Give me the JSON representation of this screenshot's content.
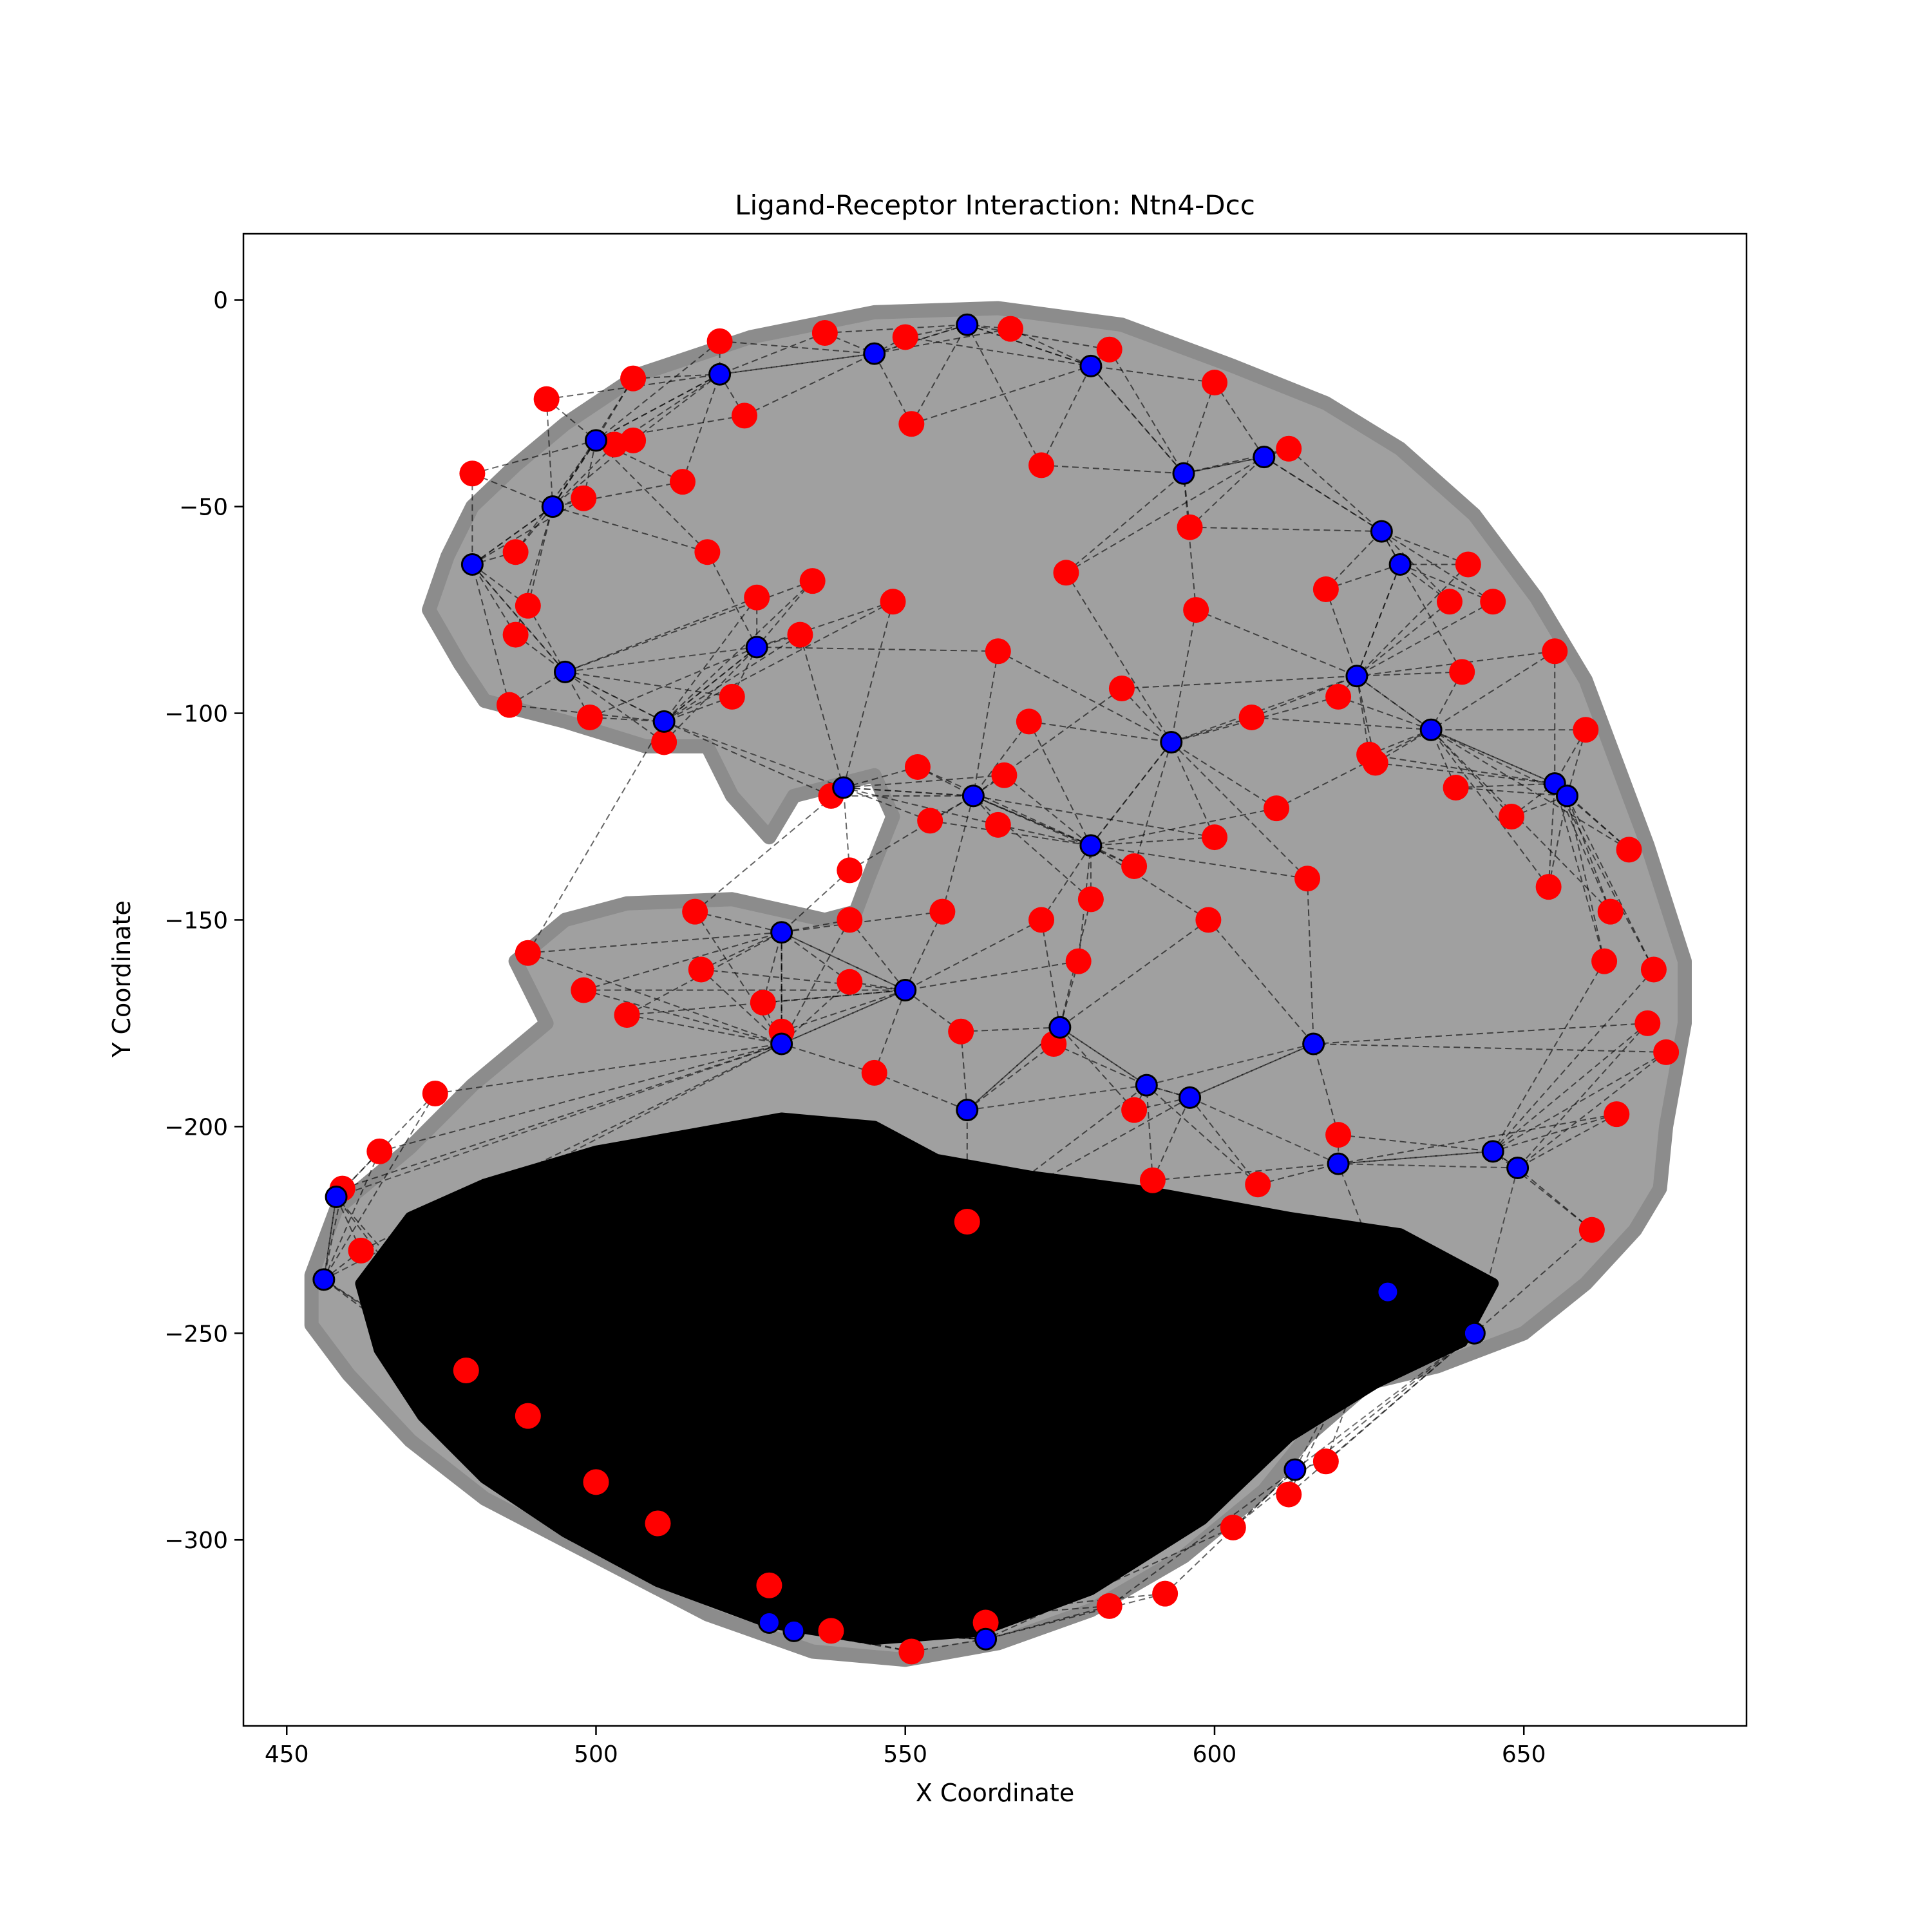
{
  "chart_data": {
    "type": "scatter",
    "title": "Ligand-Receptor Interaction: Ntn4-Dcc",
    "xlabel": "X Coordinate",
    "ylabel": "Y Coordinate",
    "xlim": [
      443,
      686
    ],
    "ylim": [
      -345,
      16
    ],
    "xticks": [
      450,
      500,
      550,
      600,
      650
    ],
    "yticks": [
      0,
      -50,
      -100,
      -150,
      -200,
      -250,
      -300
    ],
    "xtick_labels": [
      "450",
      "500",
      "550",
      "600",
      "650"
    ],
    "ytick_labels": [
      "0",
      "−50",
      "−100",
      "−150",
      "−200",
      "−250",
      "−300"
    ],
    "grid": false,
    "legend": "none",
    "colors": {
      "background_cells": "#a0a0a0",
      "ligand_cells": "#ff0000",
      "receptor_cells": "#0000ff",
      "interaction_edges": "#000000"
    },
    "series": [
      {
        "role": "receptor-expressing cells",
        "color": "#0000ff",
        "x": [
          480,
          500,
          520,
          545,
          560,
          580,
          595,
          608,
          627,
          630,
          495,
          493,
          511,
          526,
          540,
          561,
          580,
          593,
          623,
          635,
          655,
          657,
          530,
          575,
          589,
          596,
          620,
          645,
          649,
          628,
          560,
          550,
          530,
          616,
          613,
          528,
          456,
          458,
          563,
          532,
          642
        ],
        "y": [
          -64,
          -34,
          -18,
          -13,
          -6,
          -16,
          -42,
          -38,
          -56,
          -64,
          -90,
          -50,
          -102,
          -84,
          -118,
          -120,
          -132,
          -107,
          -91,
          -104,
          -117,
          -120,
          -153,
          -176,
          -190,
          -193,
          -209,
          -206,
          -210,
          -240,
          -196,
          -167,
          -180,
          -180,
          -283,
          -320,
          -237,
          -217,
          -324,
          -322,
          -250
        ]
      },
      {
        "role": "ligand-expressing cells",
        "color": "#ff0000",
        "x": [
          492,
          506,
          520,
          537,
          550,
          567,
          583,
          600,
          612,
          480,
          487,
          486,
          499,
          511,
          522,
          538,
          552,
          565,
          572,
          578,
          587,
          599,
          615,
          641,
          645,
          660,
          667,
          664,
          671,
          673,
          665,
          661,
          607,
          587,
          574,
          559,
          541,
          527,
          516,
          489,
          474,
          465,
          459,
          462,
          479,
          489,
          500,
          510,
          528,
          538,
          551,
          563,
          583,
          592,
          603,
          612,
          618,
          576,
          597,
          620,
          638,
          570,
          566,
          554,
          541,
          533,
          526,
          518,
          514,
          506,
          498,
          487,
          489,
          535,
          548,
          565,
          585,
          606,
          626,
          639,
          648,
          654,
          663,
          670,
          620,
          590,
          560,
          545,
          530,
          505,
          498,
          517,
          541,
          556,
          580,
          600,
          610,
          625,
          640,
          655,
          618,
          596,
          572,
          551,
          524,
          503
        ],
        "y": [
          -24,
          -19,
          -10,
          -8,
          -9,
          -7,
          -12,
          -20,
          -36,
          -42,
          -81,
          -98,
          -101,
          -107,
          -96,
          -120,
          -113,
          -127,
          -150,
          -160,
          -137,
          -150,
          -140,
          -64,
          -73,
          -104,
          -133,
          -148,
          -162,
          -182,
          -197,
          -225,
          -214,
          -196,
          -180,
          -177,
          -165,
          -170,
          -148,
          -158,
          -192,
          -206,
          -215,
          -230,
          -259,
          -270,
          -286,
          -296,
          -311,
          -322,
          -327,
          -320,
          -316,
          -313,
          -297,
          -289,
          -281,
          -66,
          -75,
          -96,
          -73,
          -102,
          -115,
          -126,
          -138,
          -81,
          -72,
          -61,
          -44,
          -34,
          -48,
          -61,
          -74,
          -68,
          -73,
          -85,
          -94,
          -101,
          -112,
          -118,
          -125,
          -142,
          -160,
          -175,
          -202,
          -213,
          -223,
          -187,
          -177,
          -173,
          -167,
          -162,
          -150,
          -148,
          -145,
          -130,
          -123,
          -110,
          -90,
          -85,
          -70,
          -55,
          -40,
          -30,
          -28,
          -35
        ]
      }
    ]
  }
}
